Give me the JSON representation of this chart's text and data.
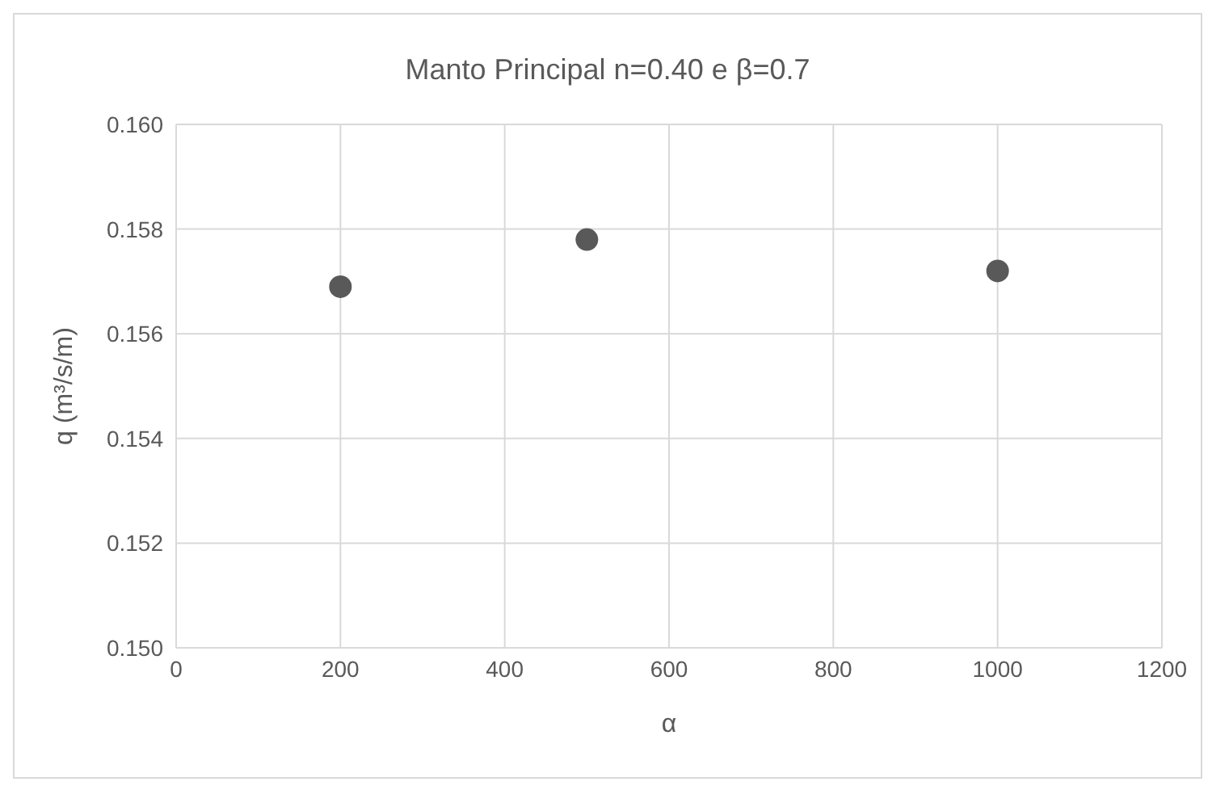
{
  "chart_data": {
    "type": "scatter",
    "title": "Manto Principal n=0.40 e β=0.7",
    "xlabel": "α",
    "ylabel": "q (m³/s/m)",
    "x": [
      200,
      500,
      1000
    ],
    "series": [
      {
        "color": "#595959",
        "values": [
          0.1569,
          0.1578,
          0.1572
        ]
      }
    ],
    "xlim": [
      0,
      1200
    ],
    "xticks": [
      0,
      200,
      400,
      600,
      800,
      1000,
      1200
    ],
    "ylim": [
      0.15,
      0.16
    ],
    "yticks": [
      {
        "value": 0.15,
        "label": "0.150"
      },
      {
        "value": 0.152,
        "label": "0.152"
      },
      {
        "value": 0.154,
        "label": "0.154"
      },
      {
        "value": 0.156,
        "label": "0.156"
      },
      {
        "value": 0.158,
        "label": "0.158"
      },
      {
        "value": 0.16,
        "label": "0.160"
      }
    ],
    "grid": true,
    "marker": "circle",
    "legend": false
  }
}
